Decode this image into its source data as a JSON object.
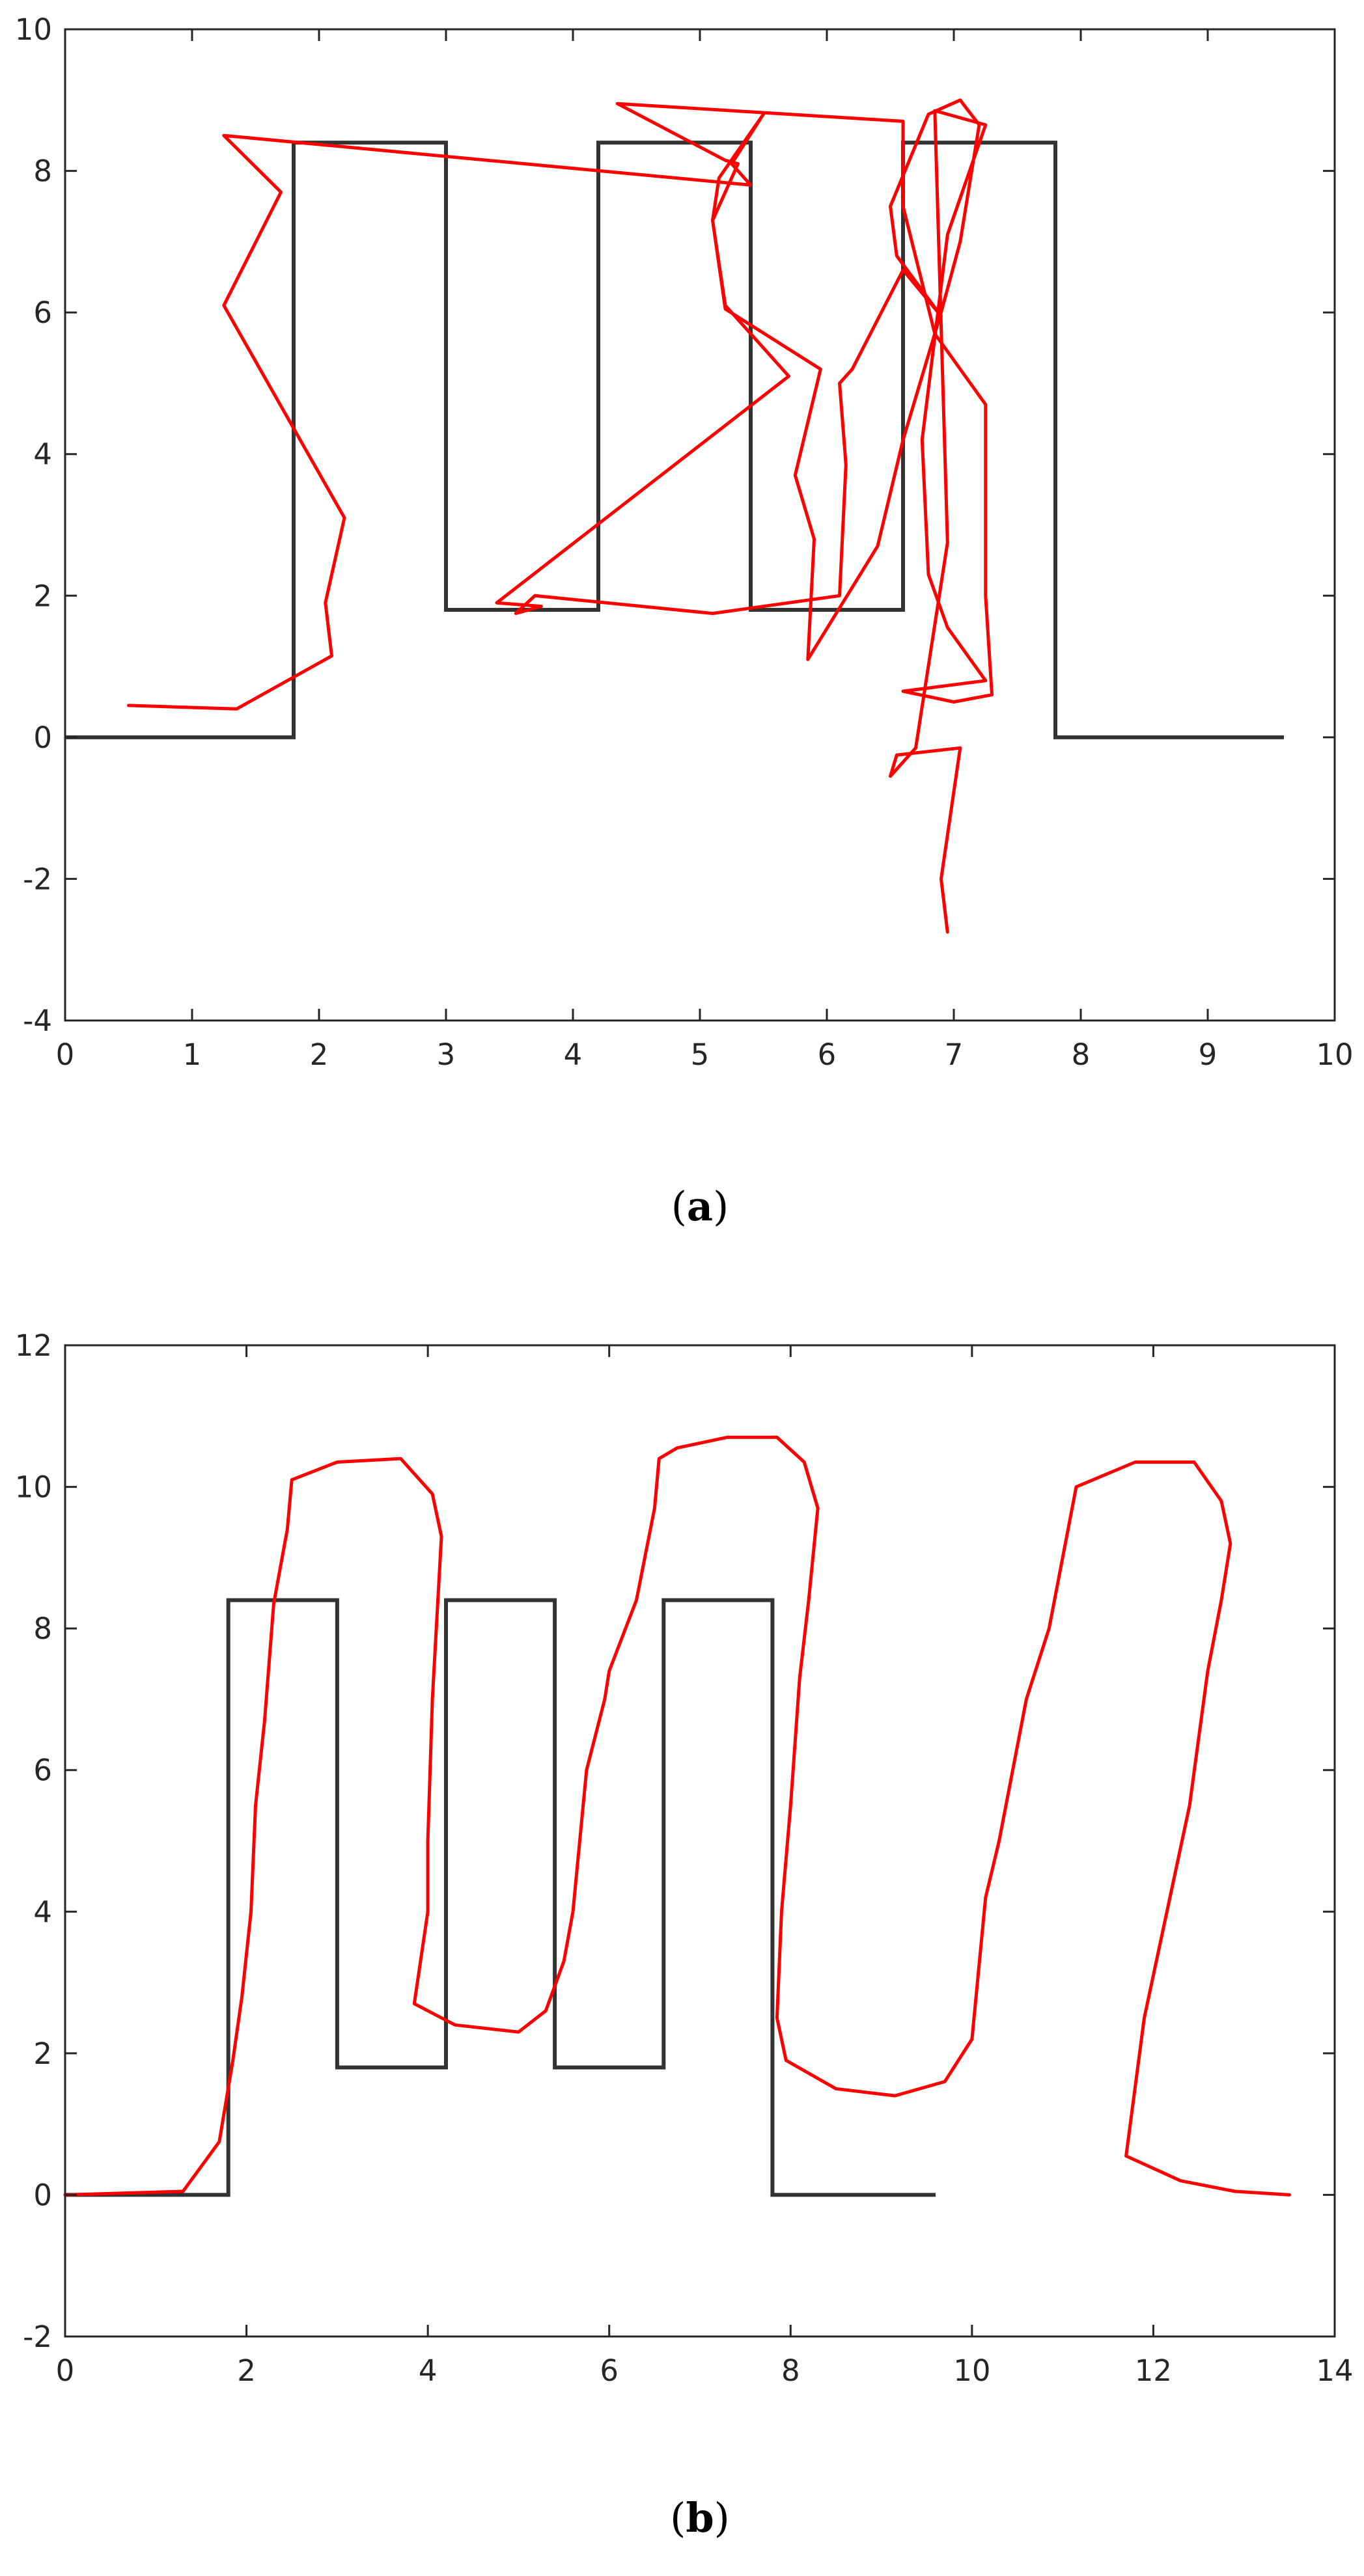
{
  "chart_data": [
    {
      "type": "line",
      "caption": "a",
      "xlim": [
        0,
        10
      ],
      "ylim": [
        -4,
        10
      ],
      "xticks": [
        0,
        1,
        2,
        3,
        4,
        5,
        6,
        7,
        8,
        9,
        10
      ],
      "yticks": [
        -4,
        -2,
        0,
        2,
        4,
        6,
        8,
        10
      ],
      "grid": false,
      "colors": {
        "reference": "#333333",
        "trajectory": "#ff0000"
      },
      "series": [
        {
          "key": "reference",
          "x": [
            0,
            1.8,
            1.8,
            3.0,
            3.0,
            4.2,
            4.2,
            5.4,
            5.4,
            6.6,
            6.6,
            7.8,
            7.8,
            9.6
          ],
          "y": [
            0,
            0,
            8.4,
            8.4,
            1.8,
            1.8,
            8.4,
            8.4,
            1.8,
            1.8,
            8.4,
            8.4,
            0,
            0
          ]
        },
        {
          "key": "trajectory",
          "x": [
            0.5,
            1.35,
            2.1,
            2.05,
            2.2,
            1.25,
            1.7,
            1.25,
            5.4,
            5.25,
            5.5,
            5.15,
            5.1,
            5.2,
            5.7,
            3.4,
            3.75,
            3.55,
            3.7,
            5.1,
            6.1,
            6.15,
            6.1,
            6.2,
            6.6,
            6.9,
            6.55,
            6.5,
            6.8,
            7.05,
            7.2,
            7.05,
            6.9,
            6.6,
            6.4,
            5.85,
            5.9,
            5.75,
            5.95,
            5.2,
            5.1,
            5.3,
            5.2,
            4.35,
            6.6,
            6.6,
            6.85,
            7.25,
            7.25,
            7.3,
            7.0,
            6.6,
            7.25,
            6.95,
            6.8,
            6.75,
            6.95,
            7.25,
            6.85,
            6.95,
            6.7,
            6.5,
            6.55,
            7.05,
            6.9,
            6.95
          ],
          "y": [
            0.45,
            0.4,
            1.15,
            1.9,
            3.1,
            6.1,
            7.7,
            8.5,
            7.8,
            8.1,
            8.8,
            7.9,
            7.3,
            6.1,
            5.1,
            1.9,
            1.85,
            1.75,
            2.0,
            1.75,
            2.0,
            3.85,
            5.0,
            5.2,
            6.6,
            5.95,
            6.8,
            7.5,
            8.8,
            9.0,
            8.65,
            7.0,
            6.0,
            4.2,
            2.7,
            1.1,
            2.8,
            3.7,
            5.2,
            6.05,
            7.3,
            8.1,
            8.15,
            8.95,
            8.7,
            7.5,
            5.7,
            4.7,
            2.0,
            0.6,
            0.5,
            0.65,
            0.8,
            1.55,
            2.3,
            4.2,
            7.1,
            8.65,
            8.85,
            2.75,
            -0.15,
            -0.55,
            -0.25,
            -0.15,
            -2.0,
            -2.75
          ]
        }
      ]
    },
    {
      "type": "line",
      "caption": "b",
      "xlim": [
        0,
        14
      ],
      "ylim": [
        -2,
        12
      ],
      "xticks": [
        0,
        2,
        4,
        6,
        8,
        10,
        12,
        14
      ],
      "yticks": [
        -2,
        0,
        2,
        4,
        6,
        8,
        10,
        12
      ],
      "grid": false,
      "colors": {
        "reference": "#333333",
        "trajectory": "#ff0000"
      },
      "series": [
        {
          "key": "reference",
          "x": [
            0,
            1.8,
            1.8,
            3.0,
            3.0,
            4.2,
            4.2,
            5.4,
            5.4,
            6.6,
            6.6,
            7.8,
            7.8,
            9.6
          ],
          "y": [
            0,
            0,
            8.4,
            8.4,
            1.8,
            1.8,
            8.4,
            8.4,
            1.8,
            1.8,
            8.4,
            8.4,
            0,
            0
          ]
        },
        {
          "key": "trajectory",
          "x": [
            0,
            1.3,
            1.7,
            1.85,
            1.95,
            2.05,
            2.1,
            2.2,
            2.3,
            2.45,
            2.5,
            3.0,
            3.7,
            4.05,
            4.15,
            4.05,
            4.0,
            4.0,
            3.85,
            4.3,
            5.0,
            5.3,
            5.5,
            5.6,
            5.75,
            5.95,
            6.0,
            6.3,
            6.5,
            6.55,
            6.75,
            7.3,
            7.85,
            8.15,
            8.3,
            8.2,
            8.1,
            8.0,
            7.9,
            7.85,
            7.95,
            8.5,
            9.15,
            9.7,
            10.0,
            10.15,
            10.3,
            10.6,
            10.85,
            11.15,
            11.8,
            12.45,
            12.75,
            12.85,
            12.75,
            12.6,
            12.4,
            12.15,
            11.9,
            11.7,
            12.3,
            12.9,
            13.5
          ],
          "y": [
            0,
            0.05,
            0.75,
            1.9,
            2.8,
            4.0,
            5.5,
            6.7,
            8.35,
            9.4,
            10.1,
            10.35,
            10.4,
            9.9,
            9.3,
            7.0,
            5.0,
            4.0,
            2.7,
            2.4,
            2.3,
            2.6,
            3.3,
            4.0,
            6.0,
            7.0,
            7.4,
            8.4,
            9.7,
            10.4,
            10.55,
            10.7,
            10.7,
            10.35,
            9.7,
            8.4,
            7.3,
            5.5,
            4.0,
            2.5,
            1.9,
            1.5,
            1.4,
            1.6,
            2.2,
            4.2,
            5.0,
            7.0,
            8.0,
            10.0,
            10.35,
            10.35,
            9.8,
            9.2,
            8.4,
            7.4,
            5.5,
            4.0,
            2.5,
            0.55,
            0.2,
            0.05,
            0
          ]
        }
      ]
    }
  ]
}
